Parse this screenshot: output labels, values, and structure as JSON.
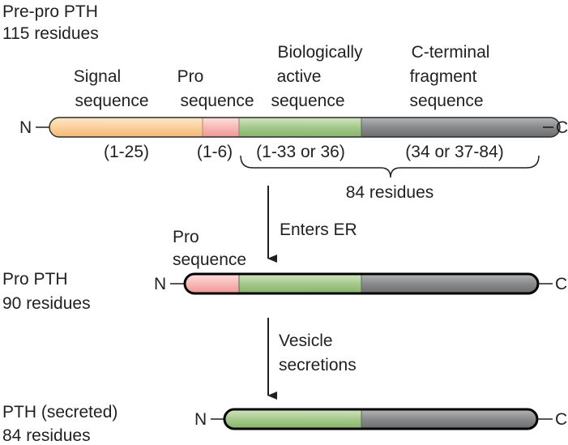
{
  "stage1": {
    "title_line1": "Pre-pro PTH",
    "title_line2": "115 residues",
    "seg_labels": {
      "signal_l1": "Signal",
      "signal_l2": "sequence",
      "pro_l1": "Pro",
      "pro_l2": "sequence",
      "bio_l1": "Biologically",
      "bio_l2": "active",
      "bio_l3": "sequence",
      "cterm_l1": "C-terminal",
      "cterm_l2": "fragment",
      "cterm_l3": "sequence"
    },
    "ranges": {
      "signal": "(1-25)",
      "pro": "(1-6)",
      "bio": "(1-33 or 36)",
      "cterm": "(34 or 37-84)"
    },
    "brace_label": "84 residues",
    "n_term": "N",
    "c_term": "C"
  },
  "step1_label": "Enters ER",
  "stage2": {
    "title_line1": "Pro PTH",
    "title_line2": "90 residues",
    "pro_l1": "Pro",
    "pro_l2": "sequence",
    "n_term": "N",
    "c_term": "C"
  },
  "step2_label_l1": "Vesicle",
  "step2_label_l2": "secretions",
  "stage3": {
    "title_line1": "PTH (secreted)",
    "title_line2": "84 residues",
    "n_term": "N",
    "c_term": "C"
  },
  "colors": {
    "signal": "#fcd7a8",
    "pro": "#f7b7b5",
    "pro_dark": "#e8a09c",
    "bio": "#a9cc93",
    "cterm": "#8a8c8e",
    "outline_light": "#231f20"
  }
}
